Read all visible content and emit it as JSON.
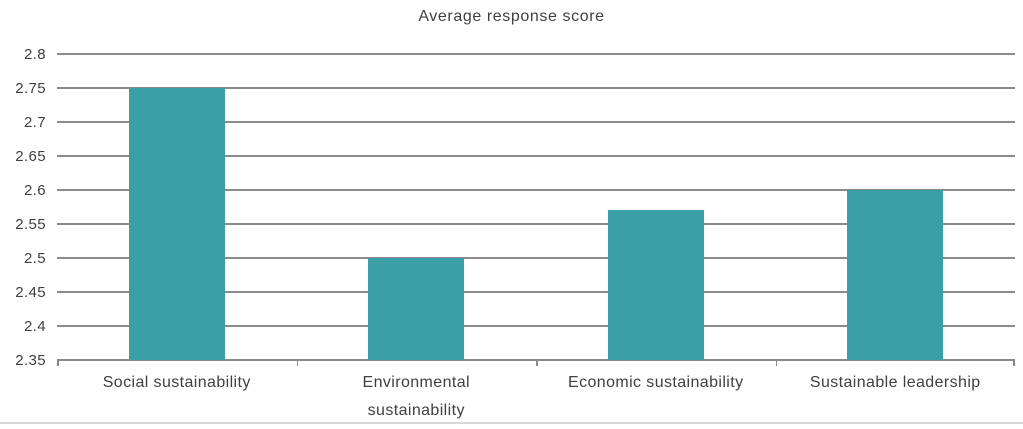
{
  "chart_data": {
    "type": "bar",
    "title": "Average response score",
    "categories": [
      "Social sustainability",
      "Environmental sustainability",
      "Economic sustainability",
      "Sustainable leadership"
    ],
    "values": [
      2.75,
      2.5,
      2.57,
      2.6
    ],
    "ylim": [
      2.35,
      2.8
    ],
    "yticks": [
      2.8,
      2.75,
      2.7,
      2.65,
      2.6,
      2.55,
      2.5,
      2.45,
      2.4,
      2.35
    ],
    "xlabel": "",
    "ylabel": "",
    "grid": true,
    "legend": false,
    "colors": {
      "bar": "#3C9FA7",
      "gridline": "#8a8a8a",
      "text": "#404040",
      "separator": "#d9d9d9"
    }
  }
}
